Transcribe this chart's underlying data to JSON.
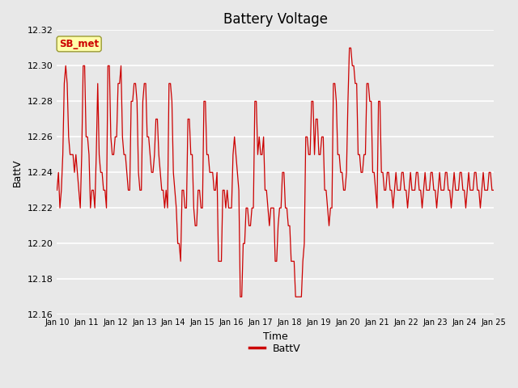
{
  "title": "Battery Voltage",
  "xlabel": "Time",
  "ylabel": "BattV",
  "legend_label": "BattV",
  "line_color": "#cc0000",
  "bg_color": "#e8e8e8",
  "ylim": [
    12.16,
    12.32
  ],
  "yticks": [
    12.16,
    12.18,
    12.2,
    12.22,
    12.24,
    12.26,
    12.28,
    12.3,
    12.32
  ],
  "xtick_labels": [
    "Jan 10",
    "Jan 11",
    "Jan 12",
    "Jan 13",
    "Jan 14",
    "Jan 15",
    "Jan 16",
    "Jan 17",
    "Jan 18",
    "Jan 19",
    "Jan 20",
    "Jan 21",
    "Jan 22",
    "Jan 23",
    "Jan 24",
    "Jan 25"
  ],
  "annotation_text": "SB_met",
  "annotation_color": "#cc0000",
  "annotation_bg": "#ffffaa",
  "annotation_border": "#999933",
  "x_values": [
    0,
    0.05,
    0.1,
    0.15,
    0.2,
    0.25,
    0.3,
    0.35,
    0.4,
    0.45,
    0.5,
    0.55,
    0.6,
    0.65,
    0.7,
    0.75,
    0.8,
    0.85,
    0.9,
    0.95,
    1.0,
    1.05,
    1.1,
    1.15,
    1.2,
    1.25,
    1.3,
    1.35,
    1.4,
    1.45,
    1.5,
    1.55,
    1.6,
    1.65,
    1.7,
    1.75,
    1.8,
    1.85,
    1.9,
    1.95,
    2.0,
    2.05,
    2.1,
    2.15,
    2.2,
    2.25,
    2.3,
    2.35,
    2.4,
    2.45,
    2.5,
    2.55,
    2.6,
    2.65,
    2.7,
    2.75,
    2.8,
    2.85,
    2.9,
    2.95,
    3.0,
    3.05,
    3.1,
    3.15,
    3.2,
    3.25,
    3.3,
    3.35,
    3.4,
    3.45,
    3.5,
    3.55,
    3.6,
    3.65,
    3.7,
    3.75,
    3.8,
    3.85,
    3.9,
    3.95,
    4.0,
    4.05,
    4.1,
    4.15,
    4.2,
    4.25,
    4.3,
    4.35,
    4.4,
    4.45,
    4.5,
    4.55,
    4.6,
    4.65,
    4.7,
    4.75,
    4.8,
    4.85,
    4.9,
    4.95,
    5.0,
    5.05,
    5.1,
    5.15,
    5.2,
    5.25,
    5.3,
    5.35,
    5.4,
    5.45,
    5.5,
    5.55,
    5.6,
    5.65,
    5.7,
    5.75,
    5.8,
    5.85,
    5.9,
    5.95,
    6.0,
    6.05,
    6.1,
    6.15,
    6.2,
    6.25,
    6.3,
    6.35,
    6.4,
    6.45,
    6.5,
    6.55,
    6.6,
    6.65,
    6.7,
    6.75,
    6.8,
    6.85,
    6.9,
    6.95,
    7.0,
    7.05,
    7.1,
    7.15,
    7.2,
    7.25,
    7.3,
    7.35,
    7.4,
    7.45,
    7.5,
    7.55,
    7.6,
    7.65,
    7.7,
    7.75,
    7.8,
    7.85,
    7.9,
    7.95,
    8.0,
    8.05,
    8.1,
    8.15,
    8.2,
    8.25,
    8.3,
    8.35,
    8.4,
    8.45,
    8.5,
    8.55,
    8.6,
    8.65,
    8.7,
    8.75,
    8.8,
    8.85,
    8.9,
    8.95,
    9.0,
    9.05,
    9.1,
    9.15,
    9.2,
    9.25,
    9.3,
    9.35,
    9.4,
    9.45,
    9.5,
    9.55,
    9.6,
    9.65,
    9.7,
    9.75,
    9.8,
    9.85,
    9.9,
    9.95,
    10.0,
    10.05,
    10.1,
    10.15,
    10.2,
    10.25,
    10.3,
    10.35,
    10.4,
    10.45,
    10.5,
    10.55,
    10.6,
    10.65,
    10.7,
    10.75,
    10.8,
    10.85,
    10.9,
    10.95,
    11.0,
    11.05,
    11.1,
    11.15,
    11.2,
    11.25,
    11.3,
    11.35,
    11.4,
    11.45,
    11.5,
    11.55,
    11.6,
    11.65,
    11.7,
    11.75,
    11.8,
    11.85,
    11.9,
    11.95,
    12.0,
    12.05,
    12.1,
    12.15,
    12.2,
    12.25,
    12.3,
    12.35,
    12.4,
    12.45,
    12.5,
    12.55,
    12.6,
    12.65,
    12.7,
    12.75,
    12.8,
    12.85,
    12.9,
    12.95,
    13.0,
    13.05,
    13.1,
    13.15,
    13.2,
    13.25,
    13.3,
    13.35,
    13.4,
    13.45,
    13.5,
    13.55,
    13.6,
    13.65,
    13.7,
    13.75,
    13.8,
    13.85,
    13.9,
    13.95,
    14.0,
    14.05,
    14.1,
    14.15,
    14.2,
    14.25,
    14.3,
    14.35,
    14.4,
    14.45,
    14.5,
    14.55,
    14.6,
    14.65,
    14.7,
    14.75,
    14.8,
    14.85,
    14.9,
    14.95,
    15.0
  ],
  "y_values": [
    12.23,
    12.24,
    12.22,
    12.23,
    12.25,
    12.29,
    12.3,
    12.29,
    12.26,
    12.25,
    12.25,
    12.25,
    12.24,
    12.25,
    12.24,
    12.23,
    12.22,
    12.25,
    12.3,
    12.3,
    12.26,
    12.26,
    12.25,
    12.22,
    12.23,
    12.23,
    12.22,
    12.25,
    12.29,
    12.25,
    12.24,
    12.24,
    12.23,
    12.23,
    12.22,
    12.3,
    12.3,
    12.26,
    12.25,
    12.25,
    12.26,
    12.26,
    12.29,
    12.29,
    12.3,
    12.26,
    12.25,
    12.25,
    12.24,
    12.23,
    12.23,
    12.28,
    12.28,
    12.29,
    12.29,
    12.28,
    12.24,
    12.23,
    12.23,
    12.28,
    12.29,
    12.29,
    12.26,
    12.26,
    12.25,
    12.24,
    12.24,
    12.25,
    12.27,
    12.27,
    12.25,
    12.24,
    12.23,
    12.23,
    12.22,
    12.23,
    12.22,
    12.29,
    12.29,
    12.28,
    12.24,
    12.23,
    12.22,
    12.2,
    12.2,
    12.19,
    12.23,
    12.23,
    12.22,
    12.22,
    12.27,
    12.27,
    12.25,
    12.25,
    12.22,
    12.21,
    12.21,
    12.23,
    12.23,
    12.22,
    12.22,
    12.28,
    12.28,
    12.25,
    12.25,
    12.24,
    12.24,
    12.24,
    12.23,
    12.23,
    12.24,
    12.19,
    12.19,
    12.19,
    12.23,
    12.23,
    12.22,
    12.23,
    12.22,
    12.22,
    12.22,
    12.25,
    12.26,
    12.25,
    12.24,
    12.23,
    12.17,
    12.17,
    12.2,
    12.2,
    12.22,
    12.22,
    12.21,
    12.21,
    12.22,
    12.22,
    12.28,
    12.28,
    12.25,
    12.26,
    12.25,
    12.25,
    12.26,
    12.23,
    12.23,
    12.22,
    12.21,
    12.22,
    12.22,
    12.22,
    12.19,
    12.19,
    12.21,
    12.22,
    12.22,
    12.24,
    12.24,
    12.22,
    12.22,
    12.21,
    12.21,
    12.19,
    12.19,
    12.19,
    12.17,
    12.17,
    12.17,
    12.17,
    12.17,
    12.19,
    12.2,
    12.26,
    12.26,
    12.25,
    12.25,
    12.28,
    12.28,
    12.25,
    12.27,
    12.27,
    12.25,
    12.25,
    12.26,
    12.26,
    12.23,
    12.23,
    12.22,
    12.21,
    12.22,
    12.22,
    12.29,
    12.29,
    12.28,
    12.25,
    12.25,
    12.24,
    12.24,
    12.23,
    12.23,
    12.24,
    12.28,
    12.31,
    12.31,
    12.3,
    12.3,
    12.29,
    12.29,
    12.25,
    12.25,
    12.24,
    12.24,
    12.25,
    12.25,
    12.29,
    12.29,
    12.28,
    12.28,
    12.24,
    12.24,
    12.23,
    12.22,
    12.28,
    12.28,
    12.24,
    12.24,
    12.23,
    12.23,
    12.24,
    12.24,
    12.23,
    12.23,
    12.22,
    12.23,
    12.24,
    12.23,
    12.23,
    12.23,
    12.24,
    12.24,
    12.23,
    12.23,
    12.22,
    12.23,
    12.24,
    12.23,
    12.23,
    12.23,
    12.24,
    12.24,
    12.23,
    12.23,
    12.22,
    12.23,
    12.24,
    12.23,
    12.23,
    12.23,
    12.24,
    12.24,
    12.23,
    12.23,
    12.22,
    12.23,
    12.24,
    12.23,
    12.23,
    12.23,
    12.24,
    12.24,
    12.23,
    12.23,
    12.22,
    12.23,
    12.24,
    12.23,
    12.23,
    12.23,
    12.24,
    12.24,
    12.23,
    12.23,
    12.22,
    12.23,
    12.24,
    12.23,
    12.23,
    12.23,
    12.24,
    12.24,
    12.23,
    12.23,
    12.22,
    12.23,
    12.24,
    12.23,
    12.23,
    12.23,
    12.24,
    12.24,
    12.23,
    12.23
  ]
}
